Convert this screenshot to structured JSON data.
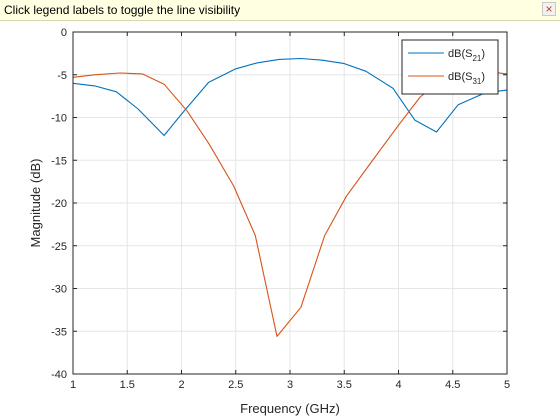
{
  "infobar": {
    "message": "Click legend labels to toggle the line visibility",
    "close_glyph": "×",
    "close_icon": "close-icon"
  },
  "chart_data": {
    "type": "line",
    "xlabel": "Frequency (GHz)",
    "ylabel": "Magnitude (dB)",
    "xlim": [
      1,
      5
    ],
    "ylim": [
      -40,
      0
    ],
    "xticks": [
      1,
      1.5,
      2,
      2.5,
      3,
      3.5,
      4,
      4.5,
      5
    ],
    "xtick_labels": [
      "1",
      "1.5",
      "2",
      "2.5",
      "3",
      "3.5",
      "4",
      "4.5",
      "5"
    ],
    "yticks": [
      0,
      -5,
      -10,
      -15,
      -20,
      -25,
      -30,
      -35,
      -40
    ],
    "ytick_labels": [
      "0",
      "-5",
      "-10",
      "-15",
      "-20",
      "-25",
      "-30",
      "-35",
      "-40"
    ],
    "grid": true,
    "legend_placement": "top-right",
    "series": [
      {
        "name": "dB(S21)",
        "label_main": "dB(S",
        "label_sub": "21",
        "label_end": ")",
        "color": "#0072bd",
        "x": [
          1.0,
          1.2,
          1.4,
          1.6,
          1.84,
          2.0,
          2.25,
          2.5,
          2.7,
          2.9,
          3.1,
          3.3,
          3.5,
          3.7,
          3.95,
          4.15,
          4.35,
          4.55,
          4.8,
          5.0
        ],
        "y": [
          -6.0,
          -6.3,
          -7.0,
          -9.0,
          -12.1,
          -9.6,
          -5.9,
          -4.3,
          -3.6,
          -3.2,
          -3.1,
          -3.3,
          -3.7,
          -4.6,
          -6.6,
          -10.3,
          -11.7,
          -8.5,
          -7.1,
          -6.8
        ]
      },
      {
        "name": "dB(S31)",
        "label_main": "dB(S",
        "label_sub": "31",
        "label_end": ")",
        "color": "#d95319",
        "x": [
          1.0,
          1.2,
          1.43,
          1.64,
          1.84,
          2.05,
          2.25,
          2.48,
          2.68,
          2.88,
          3.1,
          3.32,
          3.52,
          3.75,
          4.0,
          4.2,
          4.4,
          4.6,
          4.8,
          5.0
        ],
        "y": [
          -5.3,
          -5.0,
          -4.8,
          -4.9,
          -6.1,
          -9.2,
          -13.0,
          -18.0,
          -23.8,
          -35.6,
          -32.2,
          -23.8,
          -19.2,
          -15.2,
          -10.9,
          -7.6,
          -5.6,
          -4.7,
          -4.6,
          -4.9
        ]
      }
    ]
  }
}
